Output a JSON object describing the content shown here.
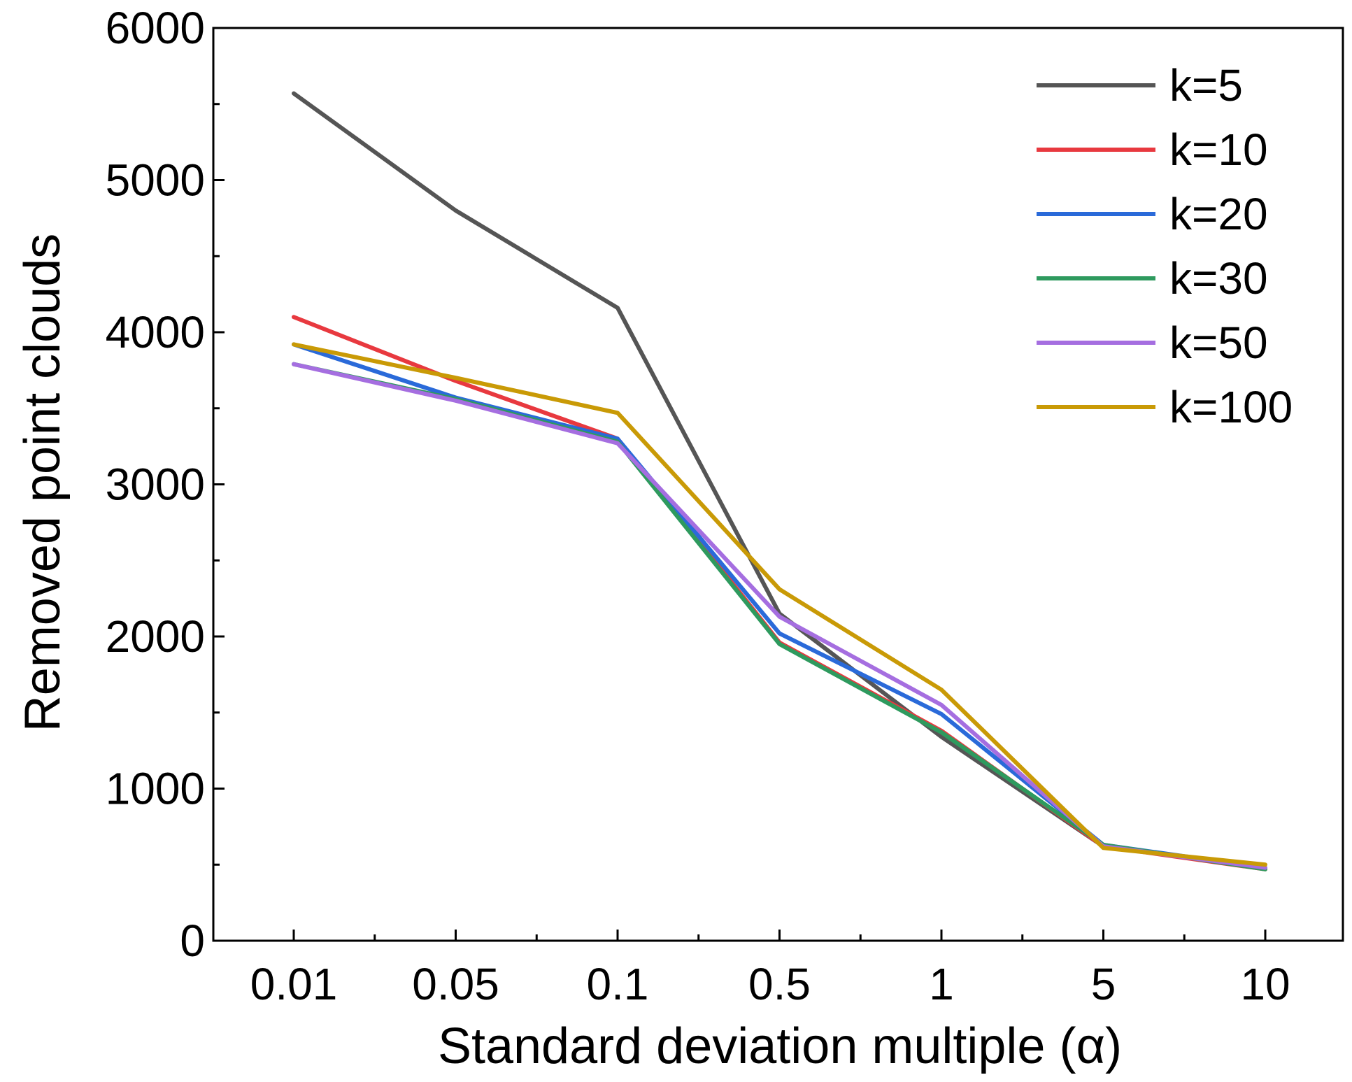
{
  "chart_data": {
    "type": "line",
    "title": "",
    "xlabel": "Standard deviation multiple (α)",
    "ylabel": "Removed point clouds",
    "categories": [
      "0.01",
      "0.05",
      "0.1",
      "0.5",
      "1",
      "5",
      "10"
    ],
    "ylim": [
      0,
      6000
    ],
    "yticks": [
      "0",
      "1000",
      "2000",
      "3000",
      "4000",
      "5000",
      "6000"
    ],
    "grid": false,
    "legend_position": "top-right",
    "series": [
      {
        "name": "k=5",
        "color": "#555555",
        "values": [
          5570,
          4800,
          4160,
          2150,
          1340,
          620,
          480
        ]
      },
      {
        "name": "k=10",
        "color": "#e8393f",
        "values": [
          4100,
          3680,
          3300,
          1960,
          1380,
          620,
          470
        ]
      },
      {
        "name": "k=20",
        "color": "#2a6ad9",
        "values": [
          3920,
          3570,
          3300,
          2020,
          1490,
          630,
          480
        ]
      },
      {
        "name": "k=30",
        "color": "#2e9a5e",
        "values": [
          3790,
          3560,
          3280,
          1950,
          1370,
          630,
          470
        ]
      },
      {
        "name": "k=50",
        "color": "#a56ee0",
        "values": [
          3790,
          3550,
          3270,
          2130,
          1550,
          620,
          480
        ]
      },
      {
        "name": "k=100",
        "color": "#c99a06",
        "values": [
          3920,
          3700,
          3470,
          2310,
          1650,
          610,
          500
        ]
      }
    ]
  }
}
